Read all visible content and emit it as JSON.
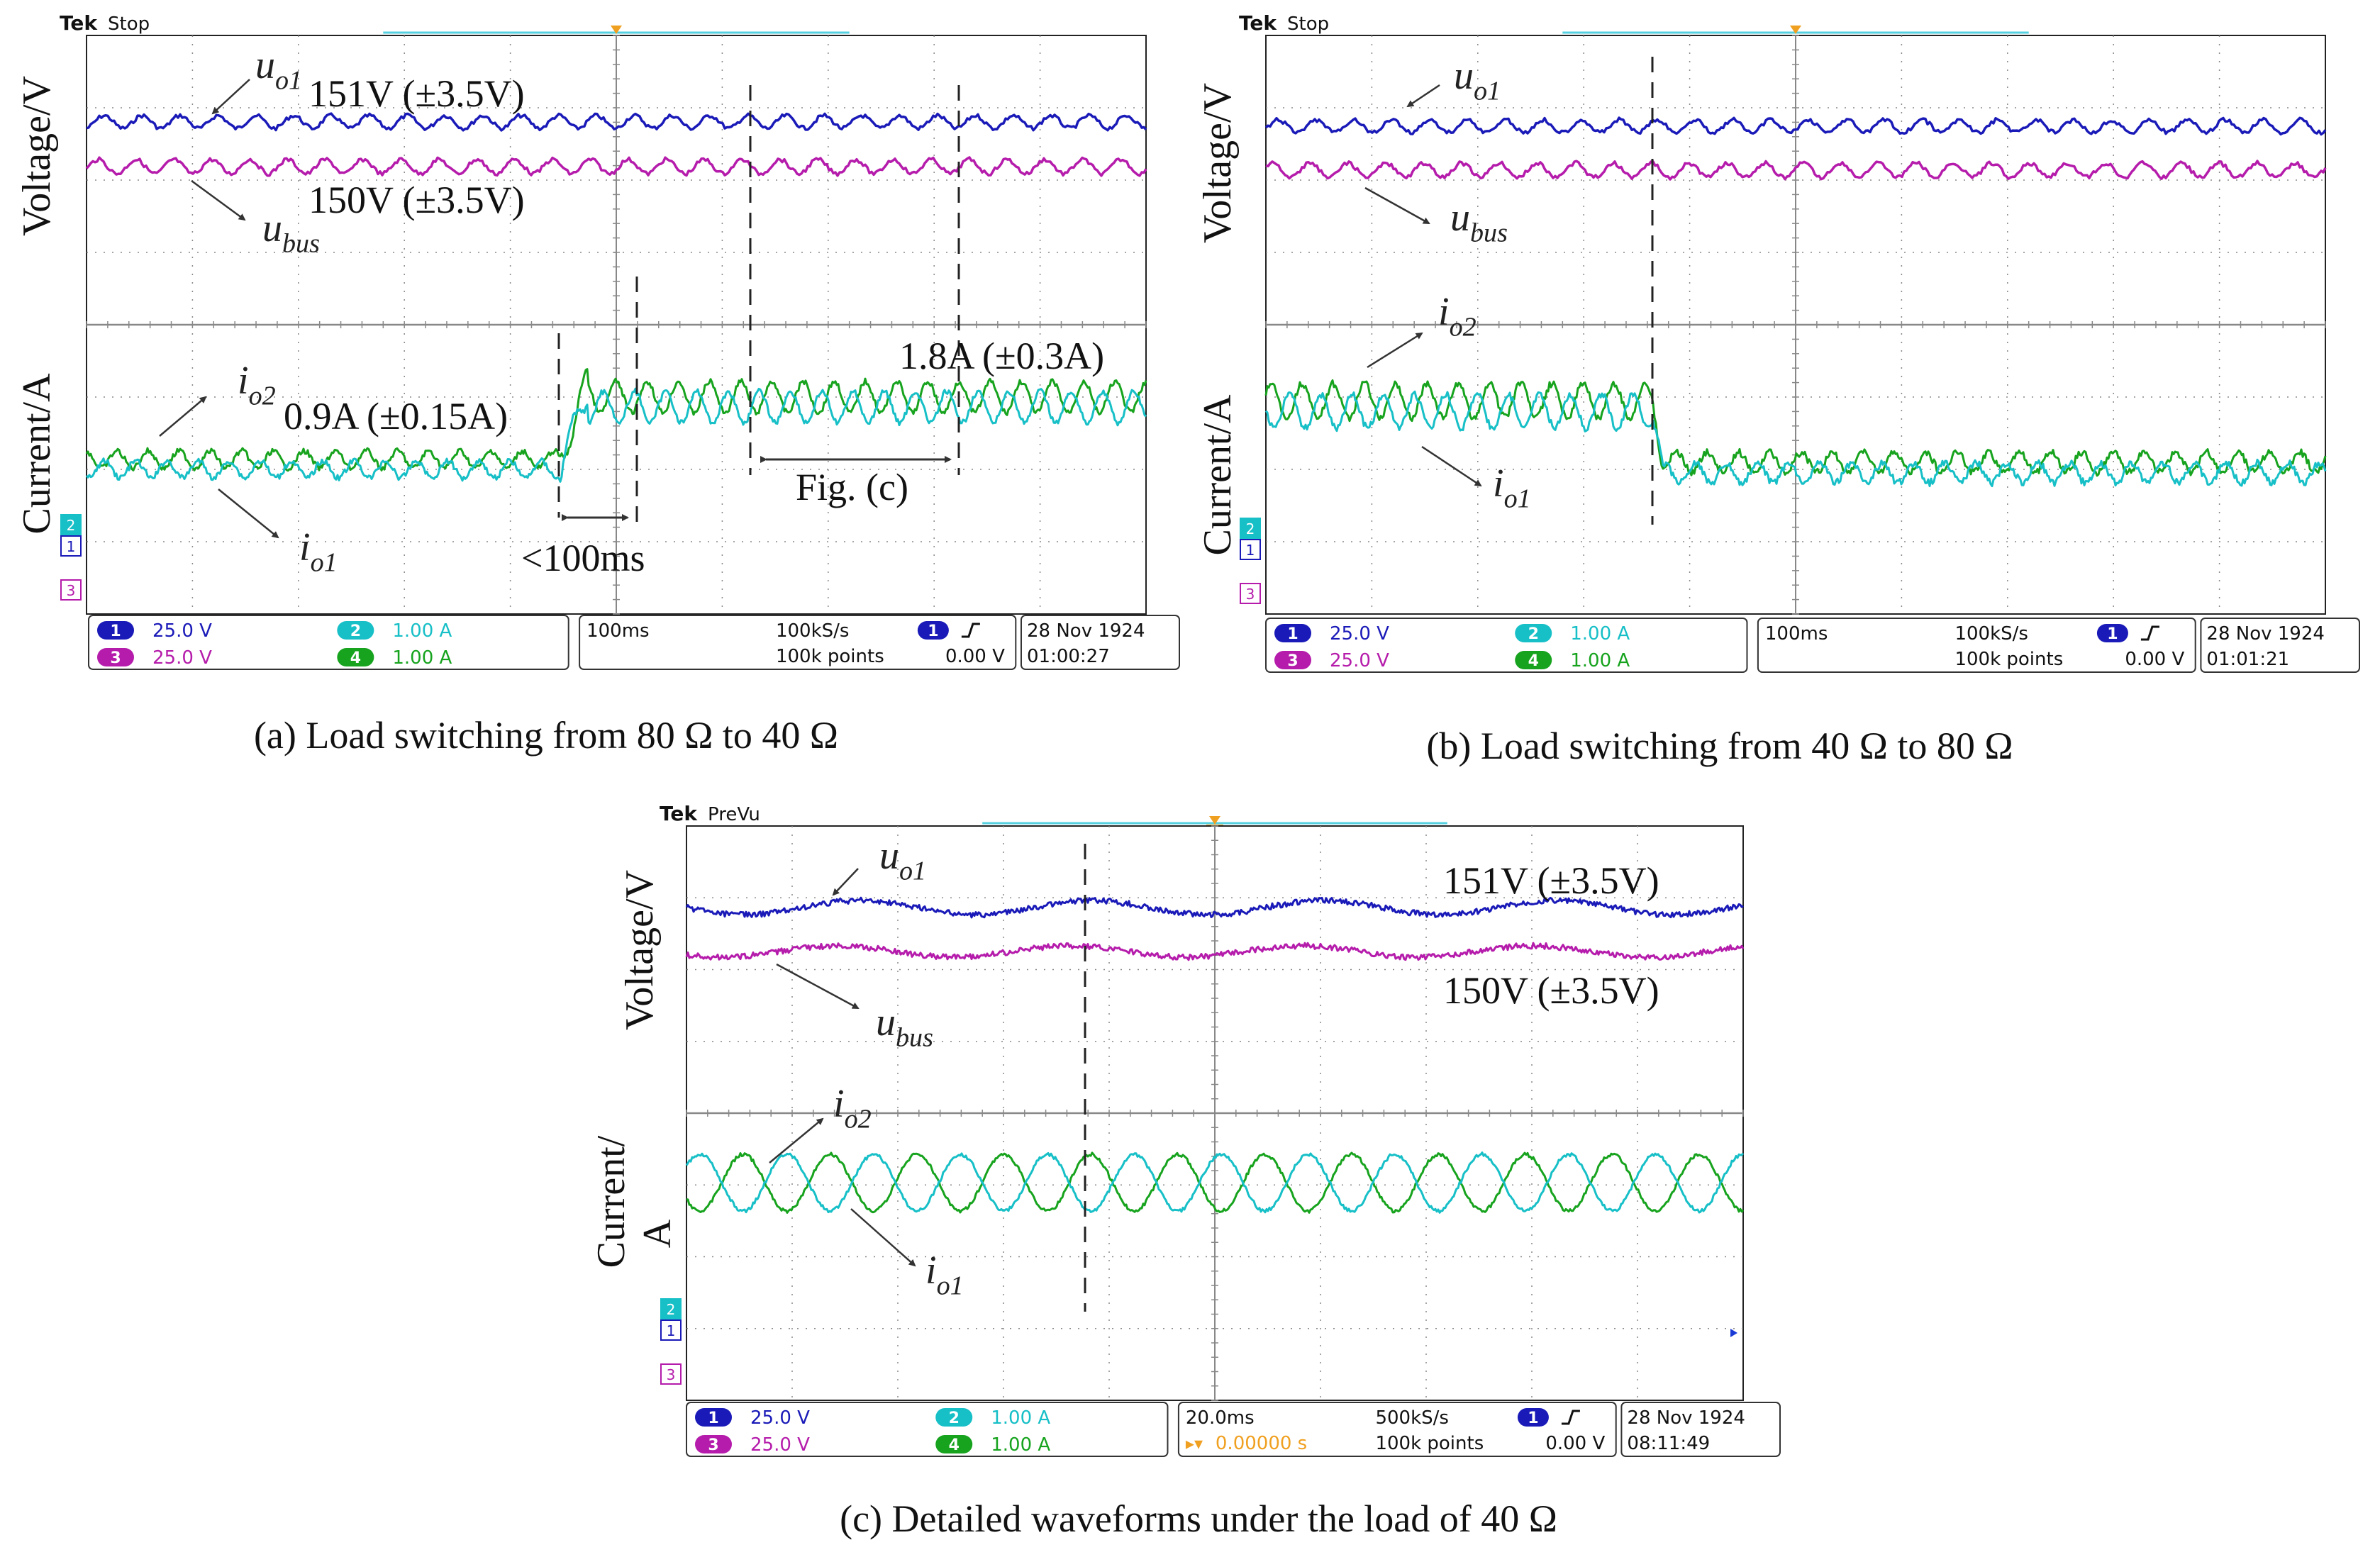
{
  "figure": {
    "colors": {
      "ch1": "#1a1ab8",
      "ch2": "#17bfc7",
      "ch3": "#b51cab",
      "ch4": "#17a31e",
      "grid": "#888888",
      "trigger": "#f0a020",
      "record_bar": "#55d0e0"
    }
  },
  "chart_data": [
    {
      "type": "line",
      "id": "a",
      "caption": "(a) Load switching from 80 Ω to 40 Ω",
      "scope": {
        "brand": "Tek",
        "status": "Stop",
        "ch1": "25.0 V",
        "ch2": "1.00 A",
        "ch3": "25.0 V",
        "ch4": "1.00 A",
        "ch1_num": "1",
        "ch2_num": "2",
        "ch3_num": "3",
        "ch4_num": "4",
        "timebase": "100ms",
        "sample_rate": "100kS/s",
        "points": "100k points",
        "trigger_level": "0.00 V",
        "date": "28 Nov 1924",
        "time": "01:00:27"
      },
      "ylabel_top": "Voltage/V",
      "ylabel_bottom": "Current/A",
      "series": [
        {
          "name": "uo1",
          "label_main": "u",
          "label_sub": "o1",
          "level_before_V": 151,
          "level_after_V": 151
        },
        {
          "name": "ubus",
          "label_main": "u",
          "label_sub": "bus",
          "level_before_V": 150,
          "level_after_V": 150
        },
        {
          "name": "io2",
          "label_main": "i",
          "label_sub": "o2",
          "level_before_A": 0.9,
          "level_after_A": 1.8
        },
        {
          "name": "io1",
          "label_main": "i",
          "label_sub": "o1",
          "level_before_A": 0.9,
          "level_after_A": 1.8
        }
      ],
      "annotations": [
        "151V (±3.5V)",
        "150V (±3.5V)",
        "0.9A (±0.15A)",
        "1.8A (±0.3A)",
        "<100ms",
        "Fig. (c)"
      ]
    },
    {
      "type": "line",
      "id": "b",
      "caption": "(b) Load switching from 40 Ω to 80 Ω",
      "scope": {
        "brand": "Tek",
        "status": "Stop",
        "ch1": "25.0 V",
        "ch2": "1.00 A",
        "ch3": "25.0 V",
        "ch4": "1.00 A",
        "ch1_num": "1",
        "ch2_num": "2",
        "ch3_num": "3",
        "ch4_num": "4",
        "timebase": "100ms",
        "sample_rate": "100kS/s",
        "points": "100k points",
        "trigger_level": "0.00 V",
        "date": "28 Nov 1924",
        "time": "01:01:21"
      },
      "ylabel_top": "Voltage/V",
      "ylabel_bottom": "Current/A",
      "series": [
        {
          "name": "uo1",
          "label_main": "u",
          "label_sub": "o1"
        },
        {
          "name": "ubus",
          "label_main": "u",
          "label_sub": "bus"
        },
        {
          "name": "io2",
          "label_main": "i",
          "label_sub": "o2"
        },
        {
          "name": "io1",
          "label_main": "i",
          "label_sub": "o1"
        }
      ]
    },
    {
      "type": "line",
      "id": "c",
      "caption": "(c) Detailed waveforms under the load of 40 Ω",
      "scope": {
        "brand": "Tek",
        "status": "PreVu",
        "ch1": "25.0 V",
        "ch2": "1.00 A",
        "ch3": "25.0 V",
        "ch4": "1.00 A",
        "ch1_num": "1",
        "ch2_num": "2",
        "ch3_num": "3",
        "ch4_num": "4",
        "timebase": "20.0ms",
        "trigger_pos": "0.00000 s",
        "sample_rate": "500kS/s",
        "points": "100k points",
        "trigger_level": "0.00 V",
        "date": "28 Nov 1924",
        "time": "08:11:49"
      },
      "ylabel_top": "Voltage/V",
      "ylabel_bottom_1": "Current/",
      "ylabel_bottom_2": "A",
      "series": [
        {
          "name": "uo1",
          "label_main": "u",
          "label_sub": "o1",
          "level_V": 151
        },
        {
          "name": "ubus",
          "label_main": "u",
          "label_sub": "bus",
          "level_V": 150
        },
        {
          "name": "io2",
          "label_main": "i",
          "label_sub": "o2"
        },
        {
          "name": "io1",
          "label_main": "i",
          "label_sub": "o1"
        }
      ],
      "annotations": [
        "151V (±3.5V)",
        "150V (±3.5V)"
      ]
    }
  ]
}
